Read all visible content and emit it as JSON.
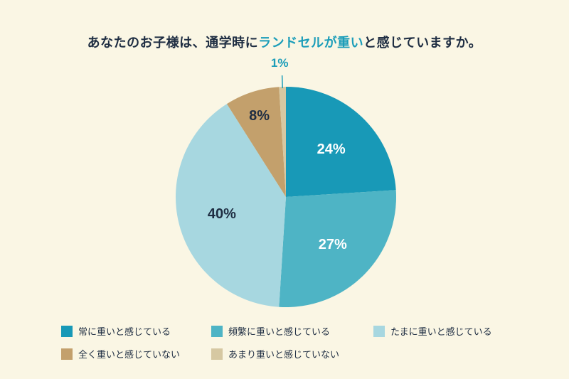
{
  "page": {
    "background_color": "#faf6e4"
  },
  "title": {
    "prefix": "あなたのお子様は、通学時に",
    "highlight": "ランドセルが重い",
    "suffix": "と感じていますか。",
    "color": "#1e2d42",
    "highlight_color": "#1b9db9"
  },
  "chart_data": {
    "type": "pie",
    "title": "あなたのお子様は、通学時にランドセルが重いと感じていますか。",
    "start_angle_deg": 0,
    "direction": "clockwise",
    "legend_position": "bottom",
    "slices": [
      {
        "label": "常に重いと感じている",
        "value": 24,
        "value_label": "24%",
        "color": "#1899b7",
        "label_color": "#ffffff",
        "outside": false
      },
      {
        "label": "頻繁に重いと感じている",
        "value": 27,
        "value_label": "27%",
        "color": "#4eb4c5",
        "label_color": "#ffffff",
        "outside": false
      },
      {
        "label": "たまに重いと感じている",
        "value": 40,
        "value_label": "40%",
        "color": "#a7d7e0",
        "label_color": "#1e2d42",
        "outside": false
      },
      {
        "label": "全く重いと感じていない",
        "value": 8,
        "value_label": "8%",
        "color": "#c3a06c",
        "label_color": "#1e2d42",
        "outside": false
      },
      {
        "label": "あまり重いと感じていない",
        "value": 1,
        "value_label": "1%",
        "color": "#d6c8a2",
        "label_color": "#1b9db9",
        "outside": true
      }
    ],
    "legend_rows": [
      [
        0,
        1,
        2
      ],
      [
        3,
        4
      ]
    ]
  }
}
